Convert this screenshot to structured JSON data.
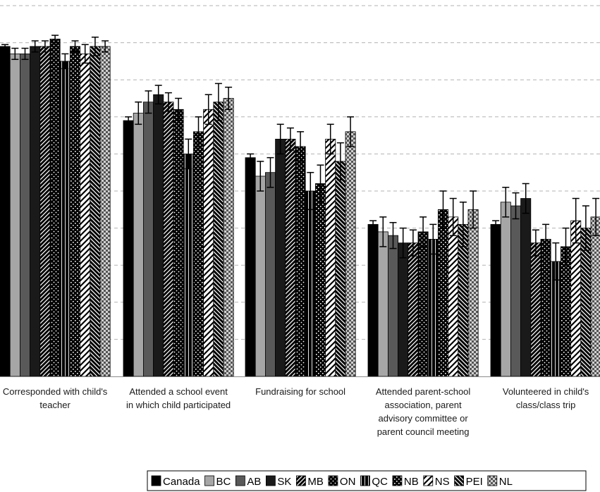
{
  "chart_data": {
    "type": "bar",
    "title": "",
    "xlabel": "",
    "ylabel": "",
    "ylim": [
      0,
      100
    ],
    "grid": true,
    "legend_position": "bottom-right",
    "categories": [
      [
        "Corresponded with child's",
        "teacher"
      ],
      [
        "Attended a school event",
        "in which child participated"
      ],
      [
        "Fundraising for school"
      ],
      [
        "Attended parent-school",
        "association, parent",
        "advisory committee or",
        "parent council meeting"
      ],
      [
        "Volunteered in child's",
        "class/class trip"
      ]
    ],
    "series": [
      {
        "name": "Canada",
        "color": "#000000",
        "pattern": "solid",
        "values": [
          89,
          69,
          59,
          41,
          41
        ],
        "errors": [
          0.5,
          1,
          1,
          1,
          1
        ]
      },
      {
        "name": "BC",
        "color": "#a6a6a6",
        "pattern": "solid",
        "values": [
          87,
          71,
          54,
          39,
          47
        ],
        "errors": [
          1.5,
          3,
          4,
          4,
          4
        ]
      },
      {
        "name": "AB",
        "color": "#595959",
        "pattern": "solid",
        "values": [
          87,
          74,
          55,
          38,
          46
        ],
        "errors": [
          1.5,
          3,
          4,
          3.5,
          3.5
        ]
      },
      {
        "name": "SK",
        "color": "#1a1a1a",
        "pattern": "solid",
        "values": [
          89,
          76,
          64,
          36,
          48
        ],
        "errors": [
          1.5,
          2.5,
          4,
          4,
          4
        ]
      },
      {
        "name": "MB",
        "color": "#000000",
        "pattern": "diag",
        "values": [
          89,
          74,
          64,
          36,
          36
        ],
        "errors": [
          1.5,
          2.5,
          3,
          3.5,
          3.5
        ]
      },
      {
        "name": "ON",
        "color": "#000000",
        "pattern": "dots",
        "values": [
          91,
          72,
          62,
          39,
          37
        ],
        "errors": [
          1,
          3,
          4,
          4,
          4
        ]
      },
      {
        "name": "QC",
        "color": "#000000",
        "pattern": "vstripes",
        "values": [
          85,
          60,
          50,
          37,
          31
        ],
        "errors": [
          2,
          4,
          5,
          4,
          5
        ]
      },
      {
        "name": "NB",
        "color": "#000000",
        "pattern": "grid",
        "values": [
          89,
          66,
          52,
          45,
          35
        ],
        "errors": [
          1.5,
          4,
          5,
          5,
          5
        ]
      },
      {
        "name": "NS",
        "color": "#ffffff",
        "pattern": "wave",
        "values": [
          87,
          72,
          64,
          43,
          42
        ],
        "errors": [
          2.5,
          4,
          4,
          5,
          6
        ]
      },
      {
        "name": "PEI",
        "color": "#000000",
        "pattern": "rdiag",
        "values": [
          89,
          74,
          58,
          41,
          40
        ],
        "errors": [
          2.5,
          5,
          5,
          6,
          6
        ]
      },
      {
        "name": "NL",
        "color": "#7f7f7f",
        "pattern": "checker",
        "values": [
          89,
          75,
          66,
          45,
          43
        ],
        "errors": [
          1.5,
          3,
          4,
          5,
          5
        ]
      }
    ]
  }
}
